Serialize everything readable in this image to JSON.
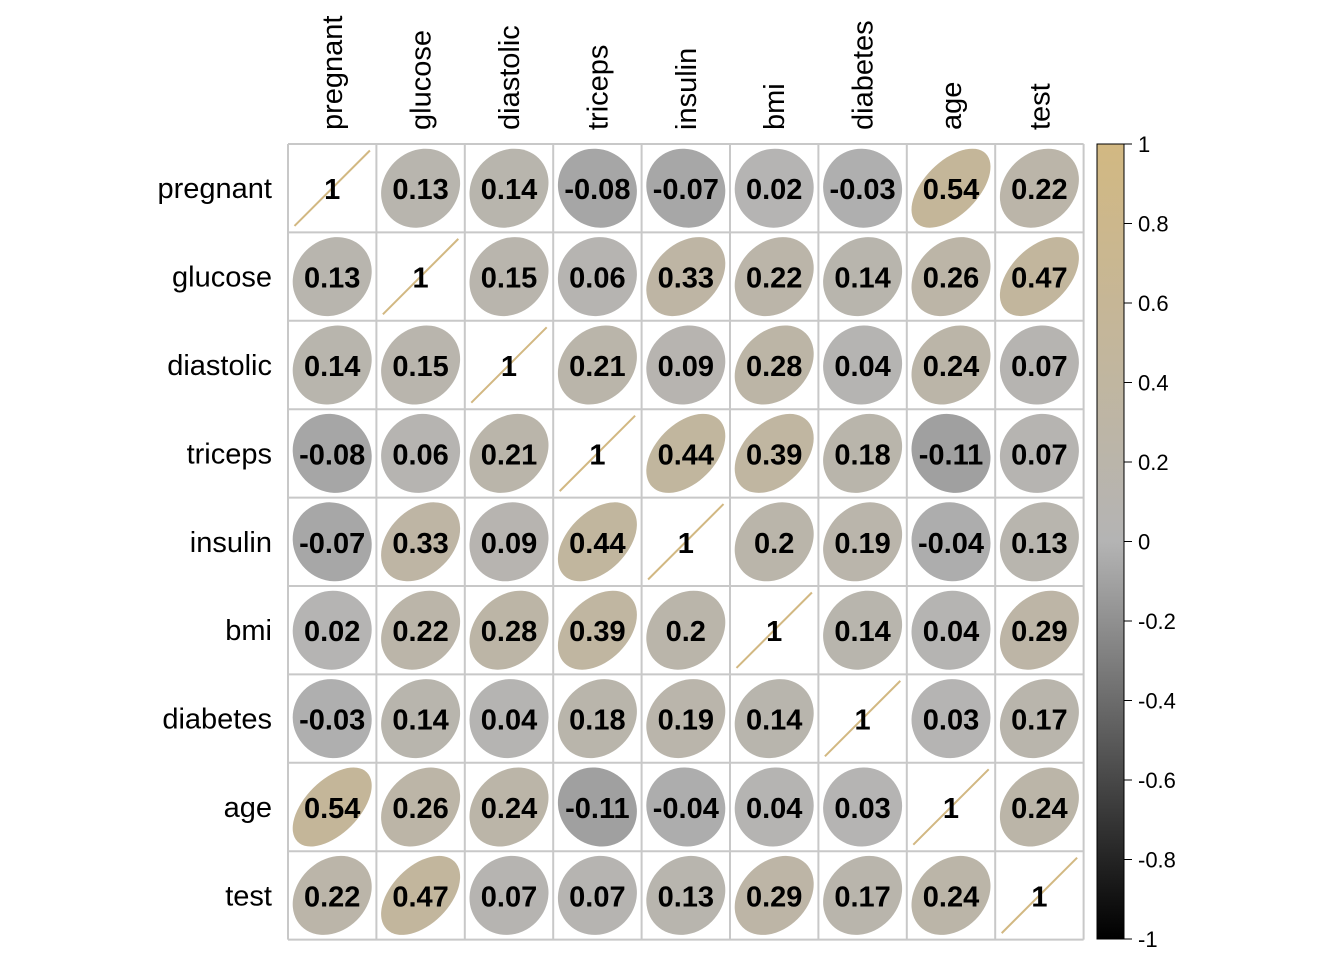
{
  "chart_data": {
    "type": "heatmap",
    "variables": [
      "pregnant",
      "glucose",
      "diastolic",
      "triceps",
      "insulin",
      "bmi",
      "diabetes",
      "age",
      "test"
    ],
    "matrix": [
      [
        1,
        0.13,
        0.14,
        -0.08,
        -0.07,
        0.02,
        -0.03,
        0.54,
        0.22
      ],
      [
        0.13,
        1,
        0.15,
        0.06,
        0.33,
        0.22,
        0.14,
        0.26,
        0.47
      ],
      [
        0.14,
        0.15,
        1,
        0.21,
        0.09,
        0.28,
        0.04,
        0.24,
        0.07
      ],
      [
        -0.08,
        0.06,
        0.21,
        1,
        0.44,
        0.39,
        0.18,
        -0.11,
        0.07
      ],
      [
        -0.07,
        0.33,
        0.09,
        0.44,
        1,
        0.2,
        0.19,
        -0.04,
        0.13
      ],
      [
        0.02,
        0.22,
        0.28,
        0.39,
        0.2,
        1,
        0.14,
        0.04,
        0.29
      ],
      [
        -0.03,
        0.14,
        0.04,
        0.18,
        0.19,
        0.14,
        1,
        0.03,
        0.17
      ],
      [
        0.54,
        0.26,
        0.24,
        -0.11,
        -0.04,
        0.04,
        0.03,
        1,
        0.24
      ],
      [
        0.22,
        0.47,
        0.07,
        0.07,
        0.13,
        0.29,
        0.17,
        0.24,
        1
      ]
    ],
    "cell_glyph": "ellipse",
    "value_range": [
      -1,
      1
    ],
    "colorbar": {
      "ticks": [
        "1",
        "0.8",
        "0.6",
        "0.4",
        "0.2",
        "0",
        "-0.2",
        "-0.4",
        "-0.6",
        "-0.8",
        "-1"
      ],
      "colors": [
        "#000000",
        "#b4b4b4",
        "#d2b882"
      ]
    },
    "grid_color": "#c8c8c8",
    "legend_position": "right"
  }
}
